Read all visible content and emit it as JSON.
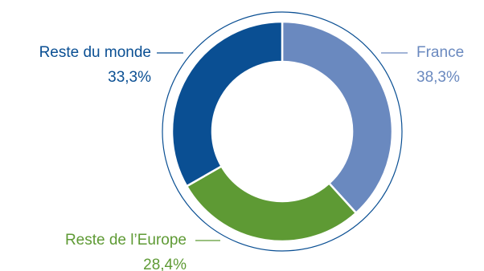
{
  "chart_data": {
    "type": "pie",
    "variant": "donut",
    "title": "",
    "categories": [
      "France",
      "Reste de l’Europe",
      "Reste du monde"
    ],
    "values": [
      38.3,
      28.4,
      33.3
    ],
    "value_labels": [
      "38,3%",
      "28,4%",
      "33,3%"
    ],
    "colors": [
      "#6a89bf",
      "#5e9a34",
      "#0a4f93"
    ],
    "start_angle_deg": 0,
    "direction": "clockwise",
    "outer_ring": true,
    "legend": "none"
  }
}
